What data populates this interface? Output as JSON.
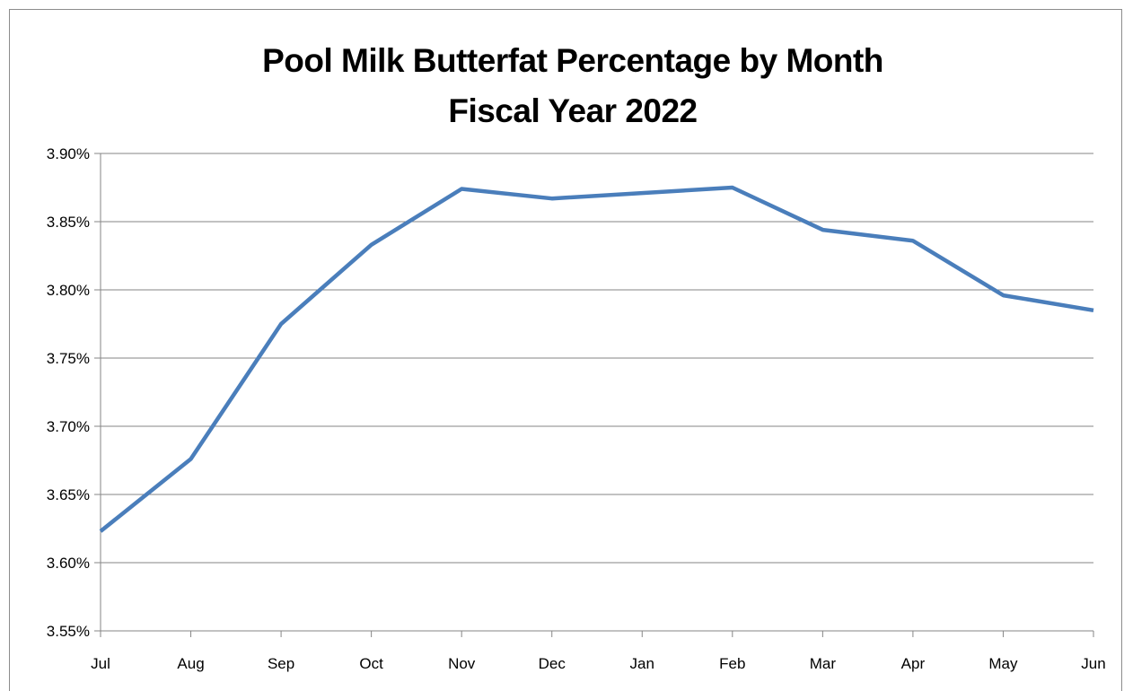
{
  "chart_data": {
    "type": "line",
    "title_line1": "Pool Milk Butterfat Percentage by Month",
    "title_line2": "Fiscal Year 2022",
    "categories": [
      "Jul",
      "Aug",
      "Sep",
      "Oct",
      "Nov",
      "Dec",
      "Jan",
      "Feb",
      "Mar",
      "Apr",
      "May",
      "Jun"
    ],
    "series": [
      {
        "values": [
          3.623,
          3.676,
          3.775,
          3.833,
          3.874,
          3.867,
          3.871,
          3.875,
          3.844,
          3.836,
          3.796,
          3.785
        ]
      }
    ],
    "ylim": [
      3.55,
      3.9
    ],
    "y_ticks": [
      3.55,
      3.6,
      3.65,
      3.7,
      3.75,
      3.8,
      3.85,
      3.9
    ],
    "y_tick_labels": [
      "3.55%",
      "3.60%",
      "3.65%",
      "3.70%",
      "3.75%",
      "3.80%",
      "3.85%",
      "3.90%"
    ],
    "grid": true,
    "legend": "none",
    "line_color": "#4a7ebb",
    "grid_color": "#868686"
  }
}
